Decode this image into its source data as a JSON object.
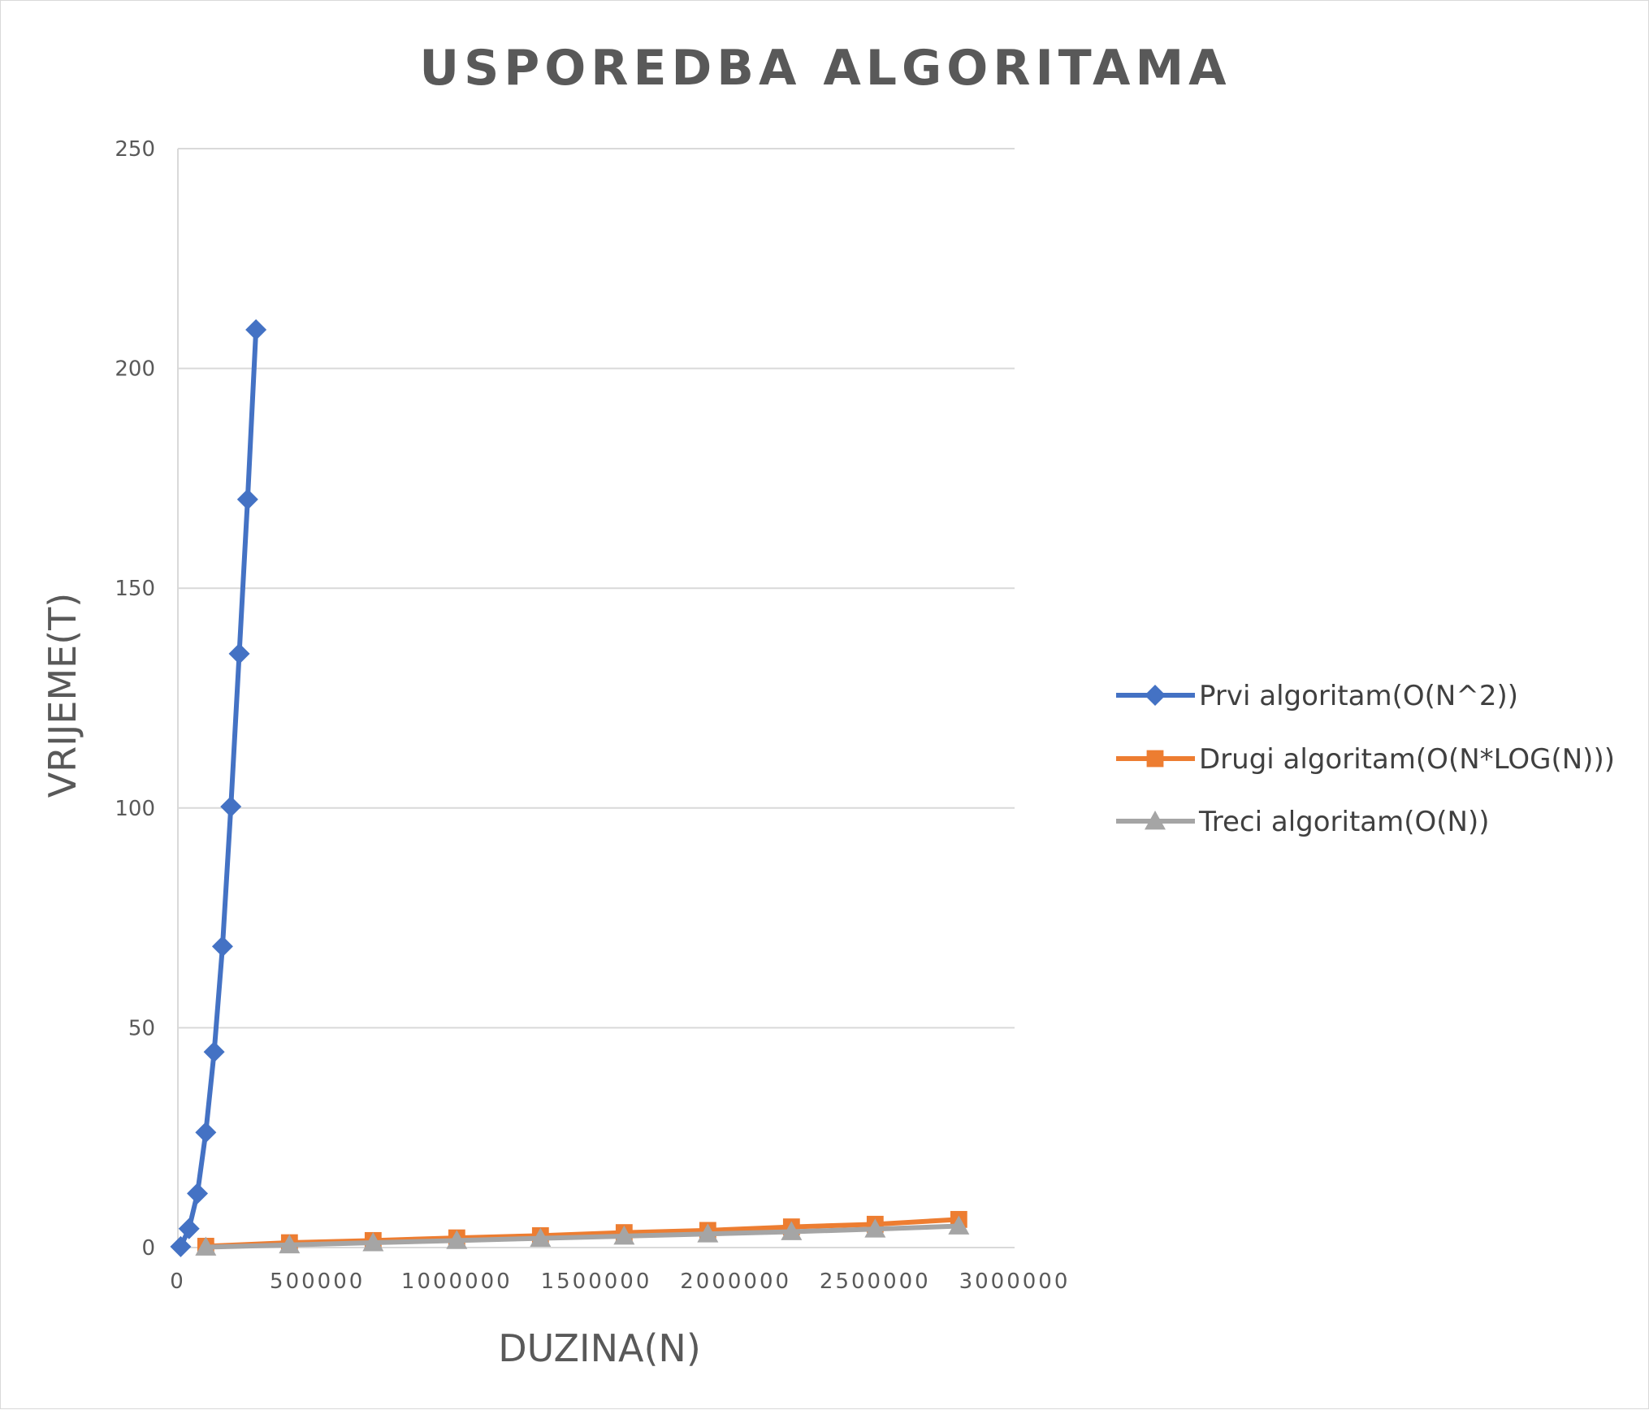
{
  "chart_data": {
    "type": "line",
    "title": "USPOREDBA ALGORITAMA",
    "xlabel": "DUZINA(N)",
    "ylabel": "VRIJEME(T)",
    "xlim": [
      0,
      3000000
    ],
    "ylim": [
      0,
      250
    ],
    "x_ticks": [
      0,
      500000,
      1000000,
      1500000,
      2000000,
      2500000,
      3000000
    ],
    "y_ticks": [
      0,
      50,
      100,
      150,
      200,
      250
    ],
    "grid": "horizontal",
    "legend_position": "right",
    "series": [
      {
        "name": "Prvi algoritam(O(N^2))",
        "color": "#4472C4",
        "marker": "diamond",
        "points": [
          [
            10000,
            0.2
          ],
          [
            40000,
            4.3
          ],
          [
            70000,
            12.3
          ],
          [
            100000,
            26.2
          ],
          [
            130000,
            44.5
          ],
          [
            160000,
            68.5
          ],
          [
            190000,
            100.3
          ],
          [
            220000,
            135.1
          ],
          [
            250000,
            170.2
          ],
          [
            280000,
            208.8
          ]
        ]
      },
      {
        "name": "Drugi algoritam(O(N*LOG(N)))",
        "color": "#ED7D31",
        "marker": "square",
        "points": [
          [
            100000,
            0.3
          ],
          [
            400000,
            1.1
          ],
          [
            700000,
            1.6
          ],
          [
            1000000,
            2.2
          ],
          [
            1300000,
            2.7
          ],
          [
            1600000,
            3.4
          ],
          [
            1900000,
            3.9
          ],
          [
            2200000,
            4.7
          ],
          [
            2500000,
            5.3
          ],
          [
            2800000,
            6.4
          ]
        ]
      },
      {
        "name": "Treci algoritam(O(N))",
        "color": "#A5A5A5",
        "marker": "triangle",
        "points": [
          [
            100000,
            0.1
          ],
          [
            400000,
            0.6
          ],
          [
            700000,
            1.1
          ],
          [
            1000000,
            1.6
          ],
          [
            1300000,
            2.1
          ],
          [
            1600000,
            2.6
          ],
          [
            1900000,
            3.1
          ],
          [
            2200000,
            3.6
          ],
          [
            2500000,
            4.2
          ],
          [
            2800000,
            4.9
          ]
        ]
      }
    ]
  }
}
